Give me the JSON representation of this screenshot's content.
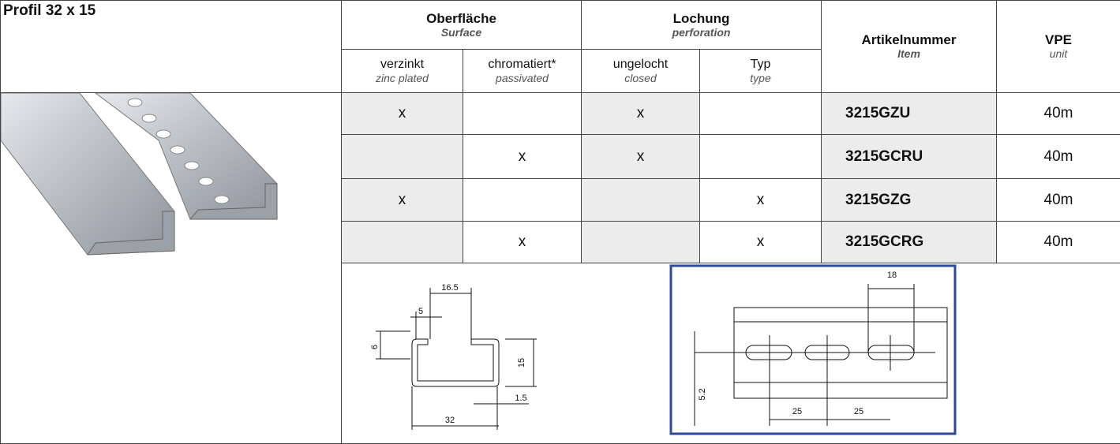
{
  "title": "Profil 32 x 15",
  "columns": {
    "surface": {
      "de": "Oberfläche",
      "en": "Surface"
    },
    "perforation": {
      "de": "Lochung",
      "en": "perforation"
    },
    "zinc": {
      "de": "verzinkt",
      "en": "zinc plated"
    },
    "chromated": {
      "de": "chromatiert*",
      "en": "passivated"
    },
    "closed": {
      "de": "ungelocht",
      "en": "closed"
    },
    "type": {
      "de": "Typ",
      "en": "type"
    },
    "item": {
      "de": "Artikelnummer",
      "en": "Item"
    },
    "unit": {
      "de": "VPE",
      "en": "unit"
    }
  },
  "rows": [
    [
      "x",
      null,
      "x",
      null,
      "3215GZU",
      "40m"
    ],
    [
      null,
      "x",
      "x",
      null,
      "3215GCRU",
      "40m"
    ],
    [
      "x",
      null,
      null,
      "x",
      "3215GZG",
      "40m"
    ],
    [
      null,
      "x",
      null,
      "x",
      "3215GCRG",
      "40m"
    ]
  ],
  "drawings": {
    "section": [
      "16.5",
      "5",
      "6",
      "15",
      "1.5",
      "32"
    ],
    "perforation": [
      "18",
      "5.2",
      "25",
      "25"
    ]
  }
}
